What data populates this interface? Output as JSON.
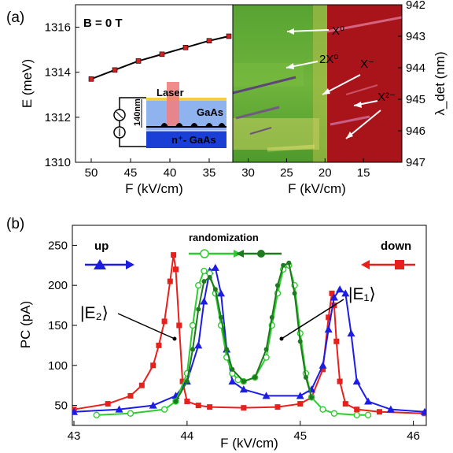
{
  "chart_data": [
    {
      "panel": "(a) left",
      "type": "line",
      "xlabel": "F (kV/cm)",
      "ylabel": "E (meV)",
      "x_reversed": true,
      "xlim": [
        52,
        32
      ],
      "ylim": [
        1310,
        1317
      ],
      "xticks": [
        "50",
        "45",
        "40",
        "35"
      ],
      "yticks": [
        "1310",
        "1312",
        "1314",
        "1316"
      ],
      "annotation": "B = 0 T",
      "inset": {
        "laser": "Laser",
        "thickness": "140nm",
        "layer_top": "GaAs",
        "layer_bottom": "n⁺- GaAs"
      },
      "series": [
        {
          "color": "#d42020",
          "marker": "square",
          "x": [
            50,
            47,
            44,
            41,
            38,
            35,
            32.5
          ],
          "y": [
            1313.7,
            1314.1,
            1314.5,
            1314.8,
            1315.1,
            1315.4,
            1315.6
          ]
        }
      ]
    },
    {
      "panel": "(a) right",
      "type": "heatmap",
      "xlabel": "F (kV/cm)",
      "ylabel": "λ_det (nm)",
      "x_reversed": true,
      "xlim": [
        32,
        10
      ],
      "ylim": [
        942,
        947
      ],
      "xticks": [
        "30",
        "25",
        "20",
        "15"
      ],
      "yticks": [
        "942",
        "943",
        "944",
        "945",
        "946",
        "947"
      ],
      "labels": [
        "X⁰",
        "2X⁰",
        "X⁻",
        "X²⁻"
      ]
    },
    {
      "panel": "(b)",
      "type": "line",
      "xlabel": "F (kV/cm)",
      "ylabel": "PC (pA)",
      "xlim": [
        43,
        46.1
      ],
      "ylim": [
        25,
        275
      ],
      "xticks": [
        "43",
        "44",
        "45",
        "46"
      ],
      "yticks": [
        "50",
        "100",
        "150",
        "200",
        "250"
      ],
      "legend": [
        "up",
        "randomization",
        "down"
      ],
      "labels": [
        "|E₂⟩",
        "|E₁⟩"
      ],
      "series": [
        {
          "name": "down",
          "color": "#e8201c",
          "marker": "square",
          "x": [
            43.0,
            43.3,
            43.5,
            43.6,
            43.7,
            43.75,
            43.8,
            43.85,
            43.88,
            43.9,
            43.93,
            43.96,
            44.0,
            44.1,
            44.2,
            44.5,
            44.8,
            45.0,
            45.1,
            45.2,
            45.25,
            45.28,
            45.3,
            45.32,
            45.35,
            45.4,
            45.5,
            45.7,
            46.1
          ],
          "y": [
            45,
            52,
            62,
            75,
            100,
            125,
            155,
            205,
            238,
            220,
            150,
            80,
            55,
            50,
            48,
            47,
            48,
            52,
            60,
            95,
            160,
            190,
            175,
            130,
            80,
            52,
            45,
            42,
            40
          ]
        },
        {
          "name": "up",
          "color": "#1c1ce6",
          "marker": "triangle",
          "x": [
            43.0,
            43.4,
            43.7,
            43.9,
            44.0,
            44.1,
            44.15,
            44.2,
            44.25,
            44.3,
            44.35,
            44.4,
            44.5,
            44.7,
            45.0,
            45.1,
            45.2,
            45.25,
            45.3,
            45.35,
            45.4,
            45.45,
            45.5,
            45.6,
            45.8,
            46.1
          ],
          "y": [
            42,
            45,
            50,
            62,
            80,
            125,
            180,
            218,
            222,
            190,
            120,
            80,
            70,
            62,
            62,
            70,
            100,
            145,
            185,
            195,
            190,
            140,
            80,
            55,
            45,
            42
          ]
        },
        {
          "name": "randomization",
          "color": "#2ecc2e",
          "marker": "open-circle",
          "x": [
            43.2,
            43.5,
            43.8,
            43.9,
            44.0,
            44.05,
            44.1,
            44.15,
            44.2,
            44.25,
            44.3,
            44.35,
            44.4,
            44.45,
            44.5,
            44.6,
            44.7,
            44.75,
            44.8,
            44.85,
            44.9,
            44.95,
            45.0,
            45.05,
            45.1,
            45.2,
            45.3,
            45.5,
            45.6
          ],
          "y": [
            38,
            40,
            45,
            55,
            90,
            150,
            200,
            218,
            215,
            190,
            150,
            110,
            90,
            82,
            80,
            85,
            110,
            150,
            190,
            220,
            225,
            200,
            140,
            90,
            60,
            45,
            40,
            38,
            38
          ]
        },
        {
          "name": "randomization",
          "color": "#1e7a1e",
          "marker": "circle",
          "x": [
            43.9,
            44.0,
            44.05,
            44.1,
            44.15,
            44.2,
            44.25,
            44.3,
            44.35,
            44.4,
            44.5,
            44.6,
            44.7,
            44.75,
            44.8,
            44.85,
            44.9,
            44.95,
            45.0,
            45.05,
            45.1
          ],
          "y": [
            55,
            80,
            120,
            170,
            205,
            210,
            195,
            160,
            120,
            95,
            80,
            85,
            120,
            160,
            200,
            225,
            228,
            190,
            130,
            85,
            60
          ]
        }
      ]
    }
  ],
  "panel_labels": [
    "(a)",
    "(b)"
  ],
  "colors": {
    "heat_green": "#4f9a2c",
    "heat_red": "#a8141a",
    "gaas": "#8fb3ef",
    "substrate": "#1a3fd6",
    "laser": "#f08080"
  }
}
